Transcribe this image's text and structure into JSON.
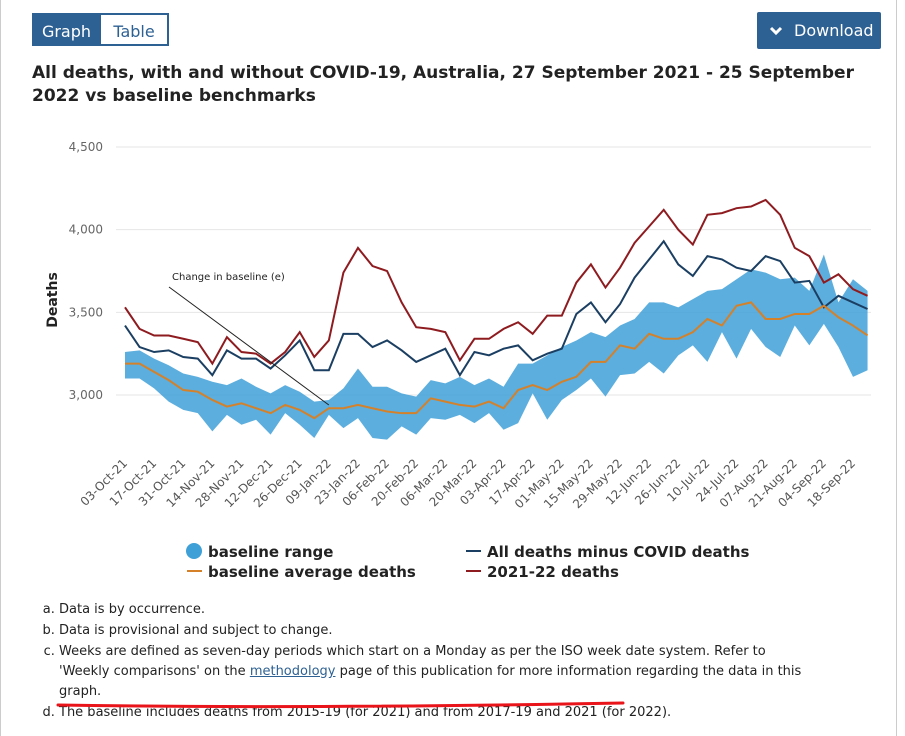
{
  "ui": {
    "tabs": [
      "Graph",
      "Table"
    ],
    "download": "Download"
  },
  "chart_data": {
    "type": "line",
    "title": "All deaths, with and without COVID-19, Australia, 27 September 2021 - 25 September 2022 vs baseline benchmarks",
    "y_label": "Deaths",
    "annotation": "Change in baseline (e)",
    "categories": [
      "03-Oct-21",
      null,
      "17-Oct-21",
      null,
      "31-Oct-21",
      null,
      "14-Nov-21",
      null,
      "28-Nov-21",
      null,
      "12-Dec-21",
      null,
      "26-Dec-21",
      null,
      "09-Jan-22",
      null,
      "23-Jan-22",
      null,
      "06-Feb-22",
      null,
      "20-Feb-22",
      null,
      "06-Mar-22",
      null,
      "20-Mar-22",
      null,
      "03-Apr-22",
      null,
      "17-Apr-22",
      null,
      "01-May-22",
      null,
      "15-May-22",
      null,
      "29-May-22",
      null,
      "12-Jun-22",
      null,
      "26-Jun-22",
      null,
      "10-Jul-22",
      null,
      "24-Jul-22",
      null,
      "07-Aug-22",
      null,
      "21-Aug-22",
      null,
      "04-Sep-22",
      null,
      "18-Sep-22",
      null
    ],
    "ylim": [
      2700,
      4500
    ],
    "yticks": [
      {
        "value": 3000,
        "label": "3,000"
      },
      {
        "value": 3500,
        "label": "3,500"
      },
      {
        "value": 4000,
        "label": "4,000"
      },
      {
        "value": 4500,
        "label": "4,500"
      }
    ],
    "grid": true,
    "series": [
      {
        "name": "baseline range",
        "color": "#3fa0d8",
        "kind": "band",
        "low": [
          3100,
          3100,
          3040,
          2960,
          2910,
          2890,
          2780,
          2880,
          2820,
          2850,
          2760,
          2890,
          2820,
          2740,
          2880,
          2800,
          2860,
          2740,
          2730,
          2810,
          2760,
          2860,
          2850,
          2880,
          2830,
          2890,
          2790,
          2830,
          3010,
          2850,
          2970,
          3030,
          3100,
          2990,
          3120,
          3130,
          3200,
          3130,
          3240,
          3300,
          3200,
          3380,
          3220,
          3400,
          3290,
          3230,
          3420,
          3300,
          3430,
          3290,
          3110,
          3150
        ],
        "high": [
          3260,
          3270,
          3220,
          3180,
          3130,
          3110,
          3080,
          3060,
          3100,
          3050,
          3010,
          3060,
          3020,
          2960,
          2970,
          3040,
          3160,
          3050,
          3050,
          3010,
          2990,
          3090,
          3070,
          3110,
          3060,
          3100,
          3050,
          3190,
          3190,
          3240,
          3290,
          3330,
          3380,
          3350,
          3420,
          3460,
          3560,
          3560,
          3530,
          3580,
          3630,
          3640,
          3700,
          3760,
          3740,
          3700,
          3710,
          3630,
          3850,
          3560,
          3700,
          3630
        ]
      },
      {
        "name": "All deaths minus COVID deaths",
        "color": "#1b3f62",
        "values": [
          3420,
          3290,
          3260,
          3270,
          3230,
          3220,
          3120,
          3270,
          3220,
          3220,
          3160,
          3240,
          3330,
          3150,
          3150,
          3370,
          3370,
          3290,
          3330,
          3270,
          3200,
          3240,
          3280,
          3120,
          3260,
          3240,
          3280,
          3300,
          3210,
          3250,
          3280,
          3490,
          3560,
          3440,
          3550,
          3710,
          3820,
          3930,
          3790,
          3720,
          3840,
          3820,
          3770,
          3750,
          3840,
          3810,
          3680,
          3690,
          3530,
          3600,
          3560,
          3520
        ]
      },
      {
        "name": "baseline average deaths",
        "color": "#d4812a",
        "values": [
          3190,
          3190,
          3140,
          3090,
          3030,
          3020,
          2970,
          2930,
          2950,
          2920,
          2890,
          2940,
          2910,
          2860,
          2920,
          2920,
          2940,
          2920,
          2900,
          2890,
          2890,
          2980,
          2960,
          2940,
          2930,
          2960,
          2920,
          3030,
          3060,
          3030,
          3080,
          3110,
          3200,
          3200,
          3300,
          3280,
          3370,
          3340,
          3340,
          3380,
          3460,
          3420,
          3540,
          3560,
          3460,
          3460,
          3490,
          3490,
          3540,
          3470,
          3420,
          3360
        ]
      },
      {
        "name": "2021-22 deaths",
        "color": "#8e1b1f",
        "values": [
          3530,
          3400,
          3360,
          3360,
          3340,
          3320,
          3190,
          3350,
          3260,
          3250,
          3190,
          3260,
          3380,
          3230,
          3330,
          3740,
          3890,
          3780,
          3750,
          3560,
          3410,
          3400,
          3380,
          3210,
          3340,
          3340,
          3400,
          3440,
          3370,
          3480,
          3480,
          3680,
          3790,
          3650,
          3770,
          3920,
          4020,
          4120,
          4000,
          3910,
          4090,
          4100,
          4130,
          4140,
          4180,
          4090,
          3890,
          3840,
          3680,
          3730,
          3640,
          3600
        ]
      }
    ]
  },
  "notes": [
    [
      "Data is by occurrence."
    ],
    [
      "Data is provisional and subject to change."
    ],
    [
      "Weeks are defined as seven-day periods which start on a Monday as per the ISO week date system. Refer to 'Weekly comparisons' on the ",
      "methodology",
      " page of this publication for more information regarding the data in this graph."
    ],
    [
      "The baseline includes deaths from 2015-19 (for 2021) and from 2017-19 and 2021 (for 2022)."
    ]
  ]
}
